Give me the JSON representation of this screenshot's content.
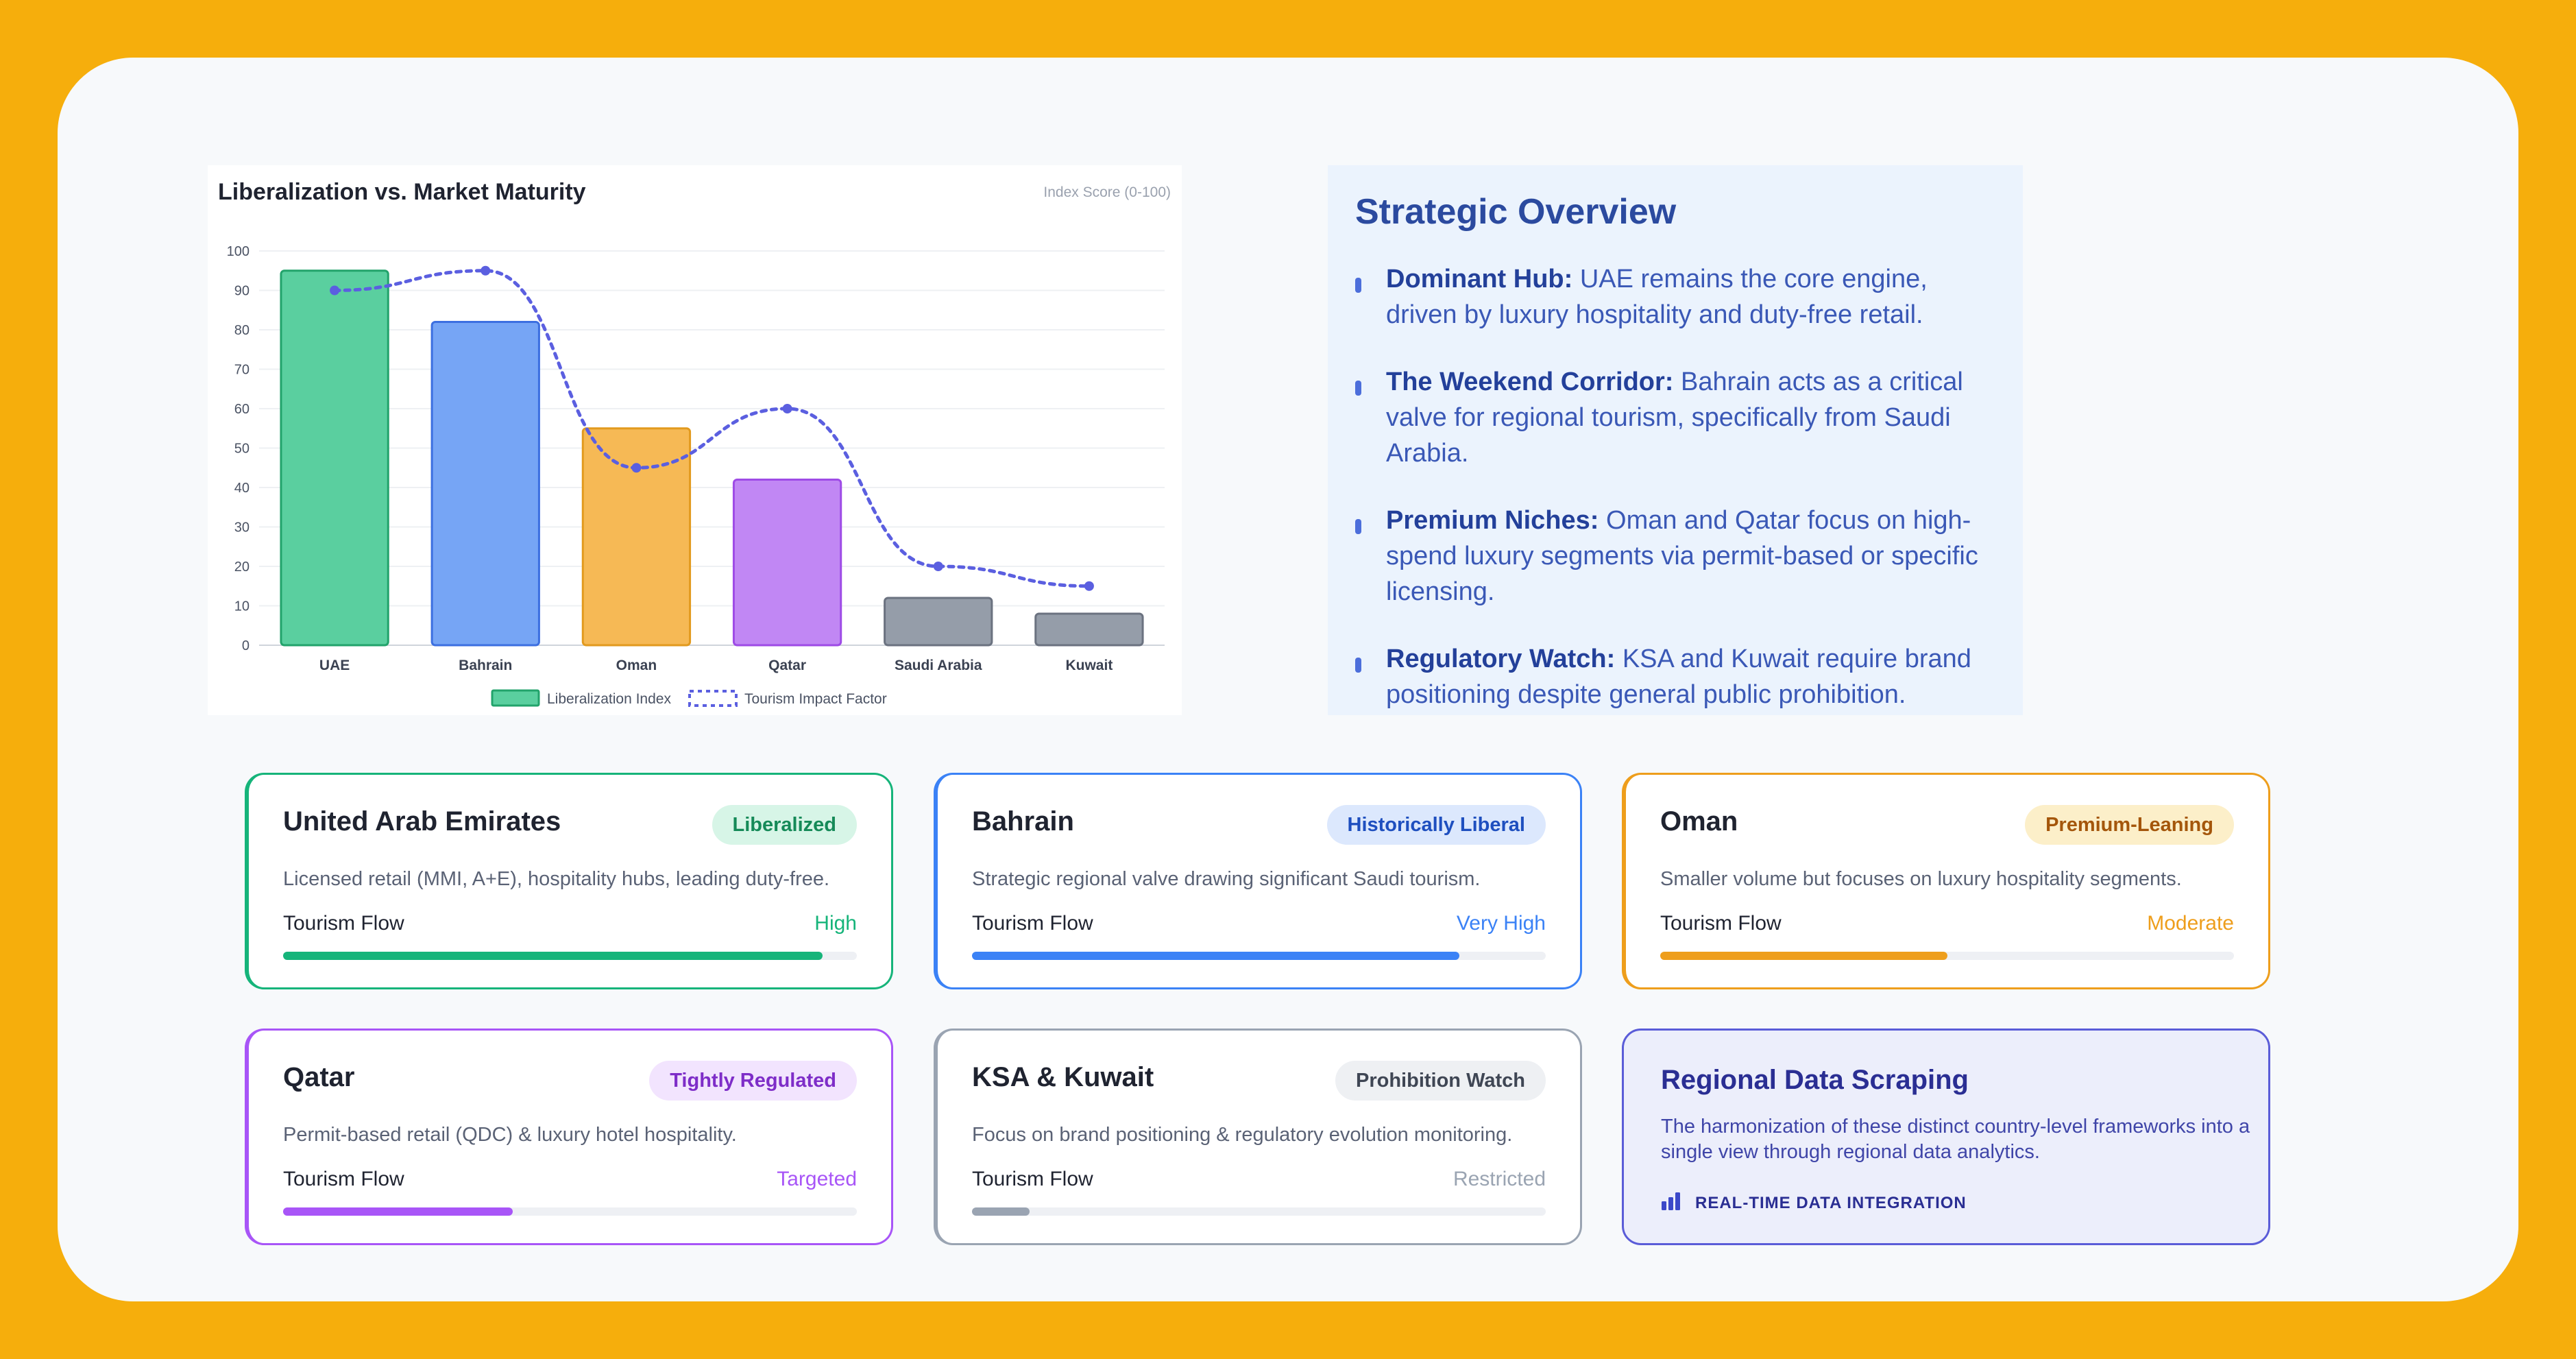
{
  "chart_data": {
    "type": "bar",
    "title": "Liberalization vs. Market Maturity",
    "subtitle": "Index Score (0-100)",
    "categories": [
      "UAE",
      "Bahrain",
      "Oman",
      "Qatar",
      "Saudi Arabia",
      "Kuwait"
    ],
    "series": [
      {
        "name": "Liberalization Index",
        "type": "bar",
        "values": [
          95,
          82,
          55,
          42,
          12,
          8
        ],
        "colors": [
          "#5ACF9F",
          "#76A5F5",
          "#F6B955",
          "#C187F4",
          "#959DA9",
          "#959DA9"
        ],
        "borders": [
          "#22A36B",
          "#3C6FE0",
          "#E29A1E",
          "#9E4BE6",
          "#6B7280",
          "#6B7280"
        ]
      },
      {
        "name": "Tourism Impact Factor",
        "type": "line",
        "style": "dashed",
        "color": "#5B5FE0",
        "values": [
          90,
          95,
          45,
          60,
          20,
          15
        ]
      }
    ],
    "ylim": [
      0,
      100
    ],
    "yticks": [
      0,
      10,
      20,
      30,
      40,
      50,
      60,
      70,
      80,
      90,
      100
    ],
    "grid": true,
    "legend": "bottom"
  },
  "overview": {
    "title": "Strategic Overview",
    "items": [
      {
        "bold": "Dominant Hub:",
        "text": " UAE remains the core engine, driven by luxury hospitality and duty-free retail."
      },
      {
        "bold": "The Weekend Corridor:",
        "text": " Bahrain acts as a critical valve for regional tourism, specifically from Saudi Arabia."
      },
      {
        "bold": "Premium Niches:",
        "text": " Oman and Qatar focus on high-spend luxury segments via permit-based or specific licensing."
      },
      {
        "bold": "Regulatory Watch:",
        "text": " KSA and Kuwait require brand positioning despite general public prohibition."
      }
    ]
  },
  "cards": [
    {
      "title": "United Arab Emirates",
      "badge": "Liberalized",
      "desc": "Licensed retail (MMI, A+E), hospitality hubs, leading duty-free.",
      "flow_label": "Tourism Flow",
      "flow_value": "High",
      "flow_level": 0.94,
      "color": "#16B47A",
      "badge_bg": "#D7F5E7",
      "badge_fg": "#158A58"
    },
    {
      "title": "Bahrain",
      "badge": "Historically Liberal",
      "desc": "Strategic regional valve drawing significant Saudi tourism.",
      "flow_label": "Tourism Flow",
      "flow_value": "Very High",
      "flow_level": 0.85,
      "color": "#3B82F6",
      "badge_bg": "#DCE8FD",
      "badge_fg": "#1E4FBF"
    },
    {
      "title": "Oman",
      "badge": "Premium-Leaning",
      "desc": "Smaller volume but focuses on luxury hospitality segments.",
      "flow_label": "Tourism Flow",
      "flow_value": "Moderate",
      "flow_level": 0.5,
      "color": "#EE9E1C",
      "badge_bg": "#FCEFC9",
      "badge_fg": "#A4560B"
    },
    {
      "title": "Qatar",
      "badge": "Tightly Regulated",
      "desc": "Permit-based retail (QDC) & luxury hotel hospitality.",
      "flow_label": "Tourism Flow",
      "flow_value": "Targeted",
      "flow_level": 0.4,
      "color": "#A855F7",
      "badge_bg": "#F2E4FE",
      "badge_fg": "#7E2DC8"
    },
    {
      "title": "KSA & Kuwait",
      "badge": "Prohibition Watch",
      "desc": "Focus on brand positioning & regulatory evolution monitoring.",
      "flow_label": "Tourism Flow",
      "flow_value": "Restricted",
      "flow_level": 0.1,
      "color": "#9AA4B2",
      "badge_bg": "#EEF0F3",
      "badge_fg": "#3F4654"
    }
  ],
  "scrape": {
    "title": "Regional Data Scraping",
    "desc": "The harmonization of these distinct country-level frameworks into a single view through regional data analytics.",
    "tag": "REAL-TIME DATA INTEGRATION",
    "icon": "bar-chart-icon"
  }
}
